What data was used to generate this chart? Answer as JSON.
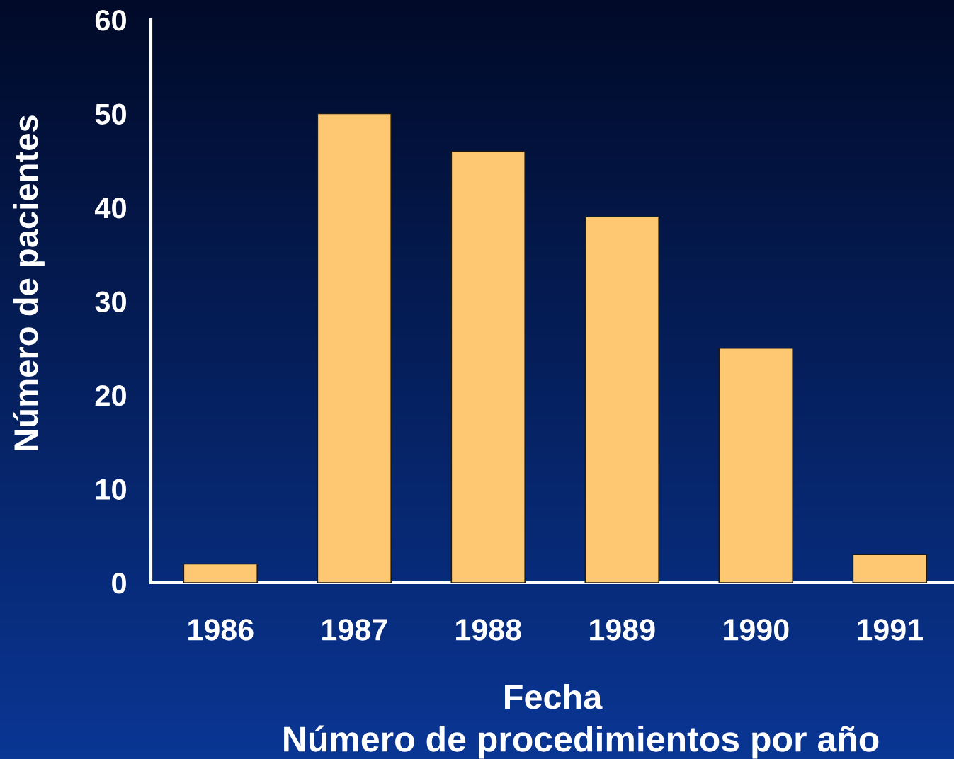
{
  "chart_data": {
    "type": "bar",
    "categories": [
      "1986",
      "1987",
      "1988",
      "1989",
      "1990",
      "1991"
    ],
    "values": [
      2,
      50,
      46,
      39,
      25,
      3
    ],
    "color": "#fec872",
    "xlabel": "Fecha",
    "ylabel": "Número de pacientes",
    "annotations": [
      "Número de procedimientos por año"
    ],
    "ylim": [
      0,
      60
    ],
    "yticks": [
      0,
      10,
      20,
      30,
      40,
      50,
      60
    ]
  }
}
